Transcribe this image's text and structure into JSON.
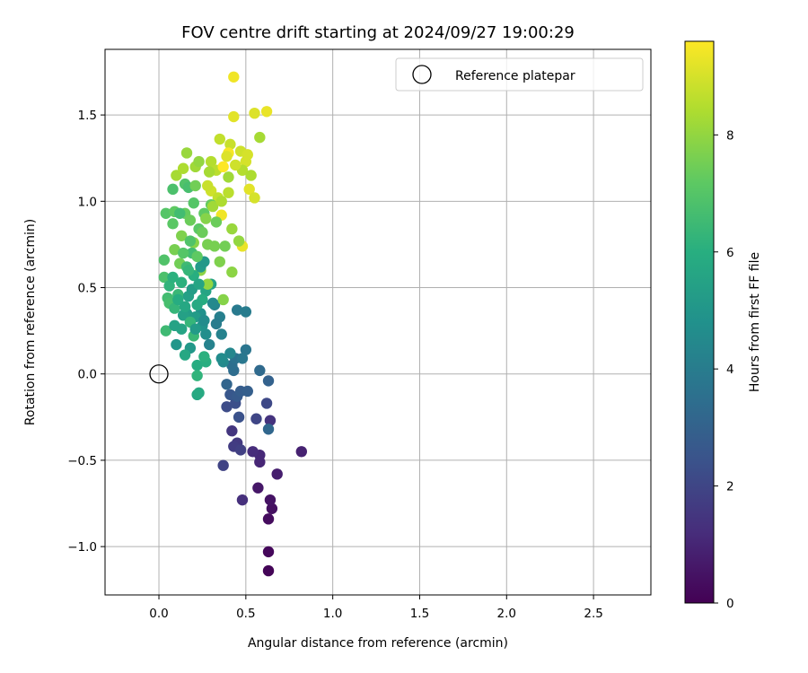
{
  "chart_data": {
    "type": "scatter",
    "title": "FOV centre drift starting at 2024/09/27 19:00:29",
    "xlabel": "Angular distance from reference (arcmin)",
    "ylabel": "Rotation from reference (arcmin)",
    "xlim": [
      -0.31,
      2.83
    ],
    "ylim": [
      -1.28,
      1.88
    ],
    "xticks": [
      0.0,
      0.5,
      1.0,
      1.5,
      2.0,
      2.5
    ],
    "xtick_labels": [
      "0.0",
      "0.5",
      "1.0",
      "1.5",
      "2.0",
      "2.5"
    ],
    "yticks": [
      -1.0,
      -0.5,
      0.0,
      0.5,
      1.0,
      1.5
    ],
    "ytick_labels": [
      "−1.0",
      "−0.5",
      "0.0",
      "0.5",
      "1.0",
      "1.5"
    ],
    "grid": true,
    "legend": {
      "placement": "top-right",
      "label": "Reference platepar"
    },
    "reference_point": {
      "x": 0.0,
      "y": 0.0
    },
    "colorbar": {
      "label": "Hours from first FF file",
      "range": [
        0,
        9.6
      ],
      "ticks": [
        0,
        2,
        4,
        6,
        8
      ],
      "tick_labels": [
        "0",
        "2",
        "4",
        "6",
        "8"
      ],
      "colormap": "viridis"
    },
    "points": [
      {
        "x": 0.63,
        "y": -1.14,
        "h": 0.1
      },
      {
        "x": 0.63,
        "y": -1.03,
        "h": 0.2
      },
      {
        "x": 0.63,
        "y": -0.84,
        "h": 0.3
      },
      {
        "x": 0.65,
        "y": -0.78,
        "h": 0.4
      },
      {
        "x": 0.64,
        "y": -0.73,
        "h": 0.5
      },
      {
        "x": 0.57,
        "y": -0.66,
        "h": 0.6
      },
      {
        "x": 0.68,
        "y": -0.58,
        "h": 0.8
      },
      {
        "x": 0.82,
        "y": -0.45,
        "h": 0.9
      },
      {
        "x": 0.58,
        "y": -0.51,
        "h": 1.0
      },
      {
        "x": 0.58,
        "y": -0.47,
        "h": 1.1
      },
      {
        "x": 0.54,
        "y": -0.45,
        "h": 1.2
      },
      {
        "x": 0.48,
        "y": -0.73,
        "h": 1.3
      },
      {
        "x": 0.64,
        "y": -0.27,
        "h": 1.4
      },
      {
        "x": 0.42,
        "y": -0.33,
        "h": 1.5
      },
      {
        "x": 0.45,
        "y": -0.4,
        "h": 1.6
      },
      {
        "x": 0.43,
        "y": -0.42,
        "h": 1.7
      },
      {
        "x": 0.47,
        "y": -0.44,
        "h": 1.8
      },
      {
        "x": 0.37,
        "y": -0.53,
        "h": 1.9
      },
      {
        "x": 0.56,
        "y": -0.26,
        "h": 2.0
      },
      {
        "x": 0.62,
        "y": -0.17,
        "h": 2.1
      },
      {
        "x": 0.39,
        "y": -0.19,
        "h": 2.2
      },
      {
        "x": 0.44,
        "y": -0.17,
        "h": 2.3
      },
      {
        "x": 0.46,
        "y": -0.25,
        "h": 2.4
      },
      {
        "x": 0.41,
        "y": -0.12,
        "h": 2.6
      },
      {
        "x": 0.45,
        "y": -0.13,
        "h": 2.7
      },
      {
        "x": 0.47,
        "y": -0.1,
        "h": 2.8
      },
      {
        "x": 0.51,
        "y": -0.1,
        "h": 2.9
      },
      {
        "x": 0.63,
        "y": -0.04,
        "h": 3.0
      },
      {
        "x": 0.39,
        "y": -0.06,
        "h": 3.1
      },
      {
        "x": 0.63,
        "y": -0.32,
        "h": 3.2
      },
      {
        "x": 0.58,
        "y": 0.02,
        "h": 3.3
      },
      {
        "x": 0.43,
        "y": 0.02,
        "h": 3.4
      },
      {
        "x": 0.42,
        "y": 0.05,
        "h": 3.5
      },
      {
        "x": 0.44,
        "y": 0.09,
        "h": 3.6
      },
      {
        "x": 0.5,
        "y": 0.14,
        "h": 3.7
      },
      {
        "x": 0.48,
        "y": 0.09,
        "h": 3.8
      },
      {
        "x": 0.45,
        "y": 0.37,
        "h": 3.9
      },
      {
        "x": 0.5,
        "y": 0.36,
        "h": 4.0
      },
      {
        "x": 0.35,
        "y": 0.33,
        "h": 4.1
      },
      {
        "x": 0.36,
        "y": 0.23,
        "h": 4.2
      },
      {
        "x": 0.32,
        "y": 0.4,
        "h": 4.3
      },
      {
        "x": 0.41,
        "y": 0.12,
        "h": 4.4
      },
      {
        "x": 0.37,
        "y": 0.07,
        "h": 4.5
      },
      {
        "x": 0.36,
        "y": 0.09,
        "h": 4.6
      },
      {
        "x": 0.27,
        "y": 0.23,
        "h": 4.7
      },
      {
        "x": 0.24,
        "y": 0.35,
        "h": 4.8
      },
      {
        "x": 0.25,
        "y": 0.28,
        "h": 4.9
      },
      {
        "x": 0.1,
        "y": 0.17,
        "h": 5.0
      },
      {
        "x": 0.18,
        "y": 0.15,
        "h": 5.1
      },
      {
        "x": 0.21,
        "y": 0.33,
        "h": 5.2
      },
      {
        "x": 0.16,
        "y": 0.35,
        "h": 5.3
      },
      {
        "x": 0.14,
        "y": 0.34,
        "h": 5.4
      },
      {
        "x": 0.3,
        "y": 0.52,
        "h": 5.5
      },
      {
        "x": 0.27,
        "y": 0.48,
        "h": 5.6
      },
      {
        "x": 0.22,
        "y": -0.12,
        "h": 5.7
      },
      {
        "x": 0.23,
        "y": -0.11,
        "h": 5.8
      },
      {
        "x": 0.22,
        "y": 0.05,
        "h": 5.9
      },
      {
        "x": 0.27,
        "y": 0.07,
        "h": 6.0
      },
      {
        "x": 0.26,
        "y": 0.1,
        "h": 6.1
      },
      {
        "x": 0.22,
        "y": -0.01,
        "h": 6.2
      },
      {
        "x": 0.18,
        "y": 0.3,
        "h": 6.3
      },
      {
        "x": 0.2,
        "y": 0.22,
        "h": 6.4
      },
      {
        "x": 0.04,
        "y": 0.25,
        "h": 6.5
      },
      {
        "x": 0.05,
        "y": 0.44,
        "h": 6.6
      },
      {
        "x": 0.06,
        "y": 0.41,
        "h": 6.7
      },
      {
        "x": 0.03,
        "y": 0.56,
        "h": 6.8
      },
      {
        "x": 0.03,
        "y": 0.66,
        "h": 6.9
      },
      {
        "x": 0.04,
        "y": 0.93,
        "h": 7.0
      },
      {
        "x": 0.08,
        "y": 0.87,
        "h": 7.1
      },
      {
        "x": 0.09,
        "y": 0.94,
        "h": 7.2
      },
      {
        "x": 0.15,
        "y": 0.93,
        "h": 7.3
      },
      {
        "x": 0.18,
        "y": 0.89,
        "h": 7.4
      },
      {
        "x": 0.12,
        "y": 0.64,
        "h": 7.5
      },
      {
        "x": 0.09,
        "y": 0.72,
        "h": 7.6
      },
      {
        "x": 0.13,
        "y": 0.8,
        "h": 7.7
      },
      {
        "x": 0.2,
        "y": 0.76,
        "h": 7.8
      },
      {
        "x": 0.24,
        "y": 0.6,
        "h": 7.9
      },
      {
        "x": 0.28,
        "y": 0.52,
        "h": 8.0
      },
      {
        "x": 0.16,
        "y": 1.28,
        "h": 8.1
      },
      {
        "x": 0.21,
        "y": 1.2,
        "h": 8.2
      },
      {
        "x": 0.1,
        "y": 1.15,
        "h": 8.3
      },
      {
        "x": 0.14,
        "y": 1.19,
        "h": 8.4
      },
      {
        "x": 0.3,
        "y": 1.23,
        "h": 8.5
      },
      {
        "x": 0.33,
        "y": 1.18,
        "h": 8.6
      },
      {
        "x": 0.35,
        "y": 1.36,
        "h": 8.7
      },
      {
        "x": 0.41,
        "y": 1.33,
        "h": 8.8
      },
      {
        "x": 0.47,
        "y": 1.29,
        "h": 8.9
      },
      {
        "x": 0.5,
        "y": 1.23,
        "h": 9.0
      },
      {
        "x": 0.55,
        "y": 1.51,
        "h": 9.1
      },
      {
        "x": 0.43,
        "y": 1.49,
        "h": 9.2
      },
      {
        "x": 0.62,
        "y": 1.52,
        "h": 9.3
      },
      {
        "x": 0.43,
        "y": 1.72,
        "h": 9.4
      },
      {
        "x": 0.4,
        "y": 1.28,
        "h": 9.5
      },
      {
        "x": 0.36,
        "y": 0.92,
        "h": 9.4
      },
      {
        "x": 0.48,
        "y": 0.74,
        "h": 9.3
      },
      {
        "x": 0.52,
        "y": 1.07,
        "h": 9.2
      },
      {
        "x": 0.55,
        "y": 1.02,
        "h": 9.0
      },
      {
        "x": 0.3,
        "y": 1.06,
        "h": 8.9
      },
      {
        "x": 0.28,
        "y": 1.09,
        "h": 8.8
      },
      {
        "x": 0.34,
        "y": 1.02,
        "h": 8.7
      },
      {
        "x": 0.4,
        "y": 1.05,
        "h": 8.6
      },
      {
        "x": 0.48,
        "y": 1.18,
        "h": 8.5
      },
      {
        "x": 0.53,
        "y": 1.15,
        "h": 8.4
      },
      {
        "x": 0.58,
        "y": 1.37,
        "h": 8.3
      },
      {
        "x": 0.4,
        "y": 1.14,
        "h": 8.2
      },
      {
        "x": 0.42,
        "y": 0.84,
        "h": 8.1
      },
      {
        "x": 0.46,
        "y": 0.77,
        "h": 8.0
      },
      {
        "x": 0.42,
        "y": 0.59,
        "h": 7.9
      },
      {
        "x": 0.37,
        "y": 0.43,
        "h": 7.8
      },
      {
        "x": 0.35,
        "y": 0.65,
        "h": 7.7
      },
      {
        "x": 0.32,
        "y": 0.74,
        "h": 7.6
      },
      {
        "x": 0.38,
        "y": 0.74,
        "h": 7.5
      },
      {
        "x": 0.33,
        "y": 0.88,
        "h": 7.4
      },
      {
        "x": 0.3,
        "y": 0.98,
        "h": 7.3
      },
      {
        "x": 0.26,
        "y": 0.93,
        "h": 7.2
      },
      {
        "x": 0.23,
        "y": 0.84,
        "h": 7.1
      },
      {
        "x": 0.2,
        "y": 0.99,
        "h": 7.0
      },
      {
        "x": 0.15,
        "y": 1.1,
        "h": 6.9
      },
      {
        "x": 0.08,
        "y": 1.07,
        "h": 6.8
      },
      {
        "x": 0.17,
        "y": 1.08,
        "h": 6.7
      },
      {
        "x": 0.19,
        "y": 0.7,
        "h": 6.6
      },
      {
        "x": 0.16,
        "y": 0.62,
        "h": 6.5
      },
      {
        "x": 0.11,
        "y": 0.46,
        "h": 6.4
      },
      {
        "x": 0.09,
        "y": 0.38,
        "h": 6.3
      },
      {
        "x": 0.06,
        "y": 0.51,
        "h": 6.2
      },
      {
        "x": 0.13,
        "y": 0.53,
        "h": 6.1
      },
      {
        "x": 0.2,
        "y": 0.57,
        "h": 6.0
      },
      {
        "x": 0.25,
        "y": 0.43,
        "h": 5.9
      },
      {
        "x": 0.22,
        "y": 0.4,
        "h": 5.8
      },
      {
        "x": 0.15,
        "y": 0.11,
        "h": 5.7
      },
      {
        "x": 0.13,
        "y": 0.26,
        "h": 5.6
      },
      {
        "x": 0.09,
        "y": 0.28,
        "h": 5.5
      },
      {
        "x": 0.17,
        "y": 0.45,
        "h": 5.4
      },
      {
        "x": 0.19,
        "y": 0.49,
        "h": 5.3
      },
      {
        "x": 0.24,
        "y": 0.62,
        "h": 5.2
      },
      {
        "x": 0.26,
        "y": 0.65,
        "h": 5.1
      },
      {
        "x": 0.28,
        "y": 0.75,
        "h": 7.6
      },
      {
        "x": 0.22,
        "y": 0.68,
        "h": 7.2
      },
      {
        "x": 0.14,
        "y": 0.7,
        "h": 7.0
      },
      {
        "x": 0.18,
        "y": 0.77,
        "h": 6.9
      },
      {
        "x": 0.25,
        "y": 0.82,
        "h": 7.4
      },
      {
        "x": 0.27,
        "y": 0.9,
        "h": 7.8
      },
      {
        "x": 0.31,
        "y": 0.97,
        "h": 8.2
      },
      {
        "x": 0.36,
        "y": 1.0,
        "h": 8.4
      },
      {
        "x": 0.39,
        "y": 1.26,
        "h": 9.1
      },
      {
        "x": 0.44,
        "y": 1.21,
        "h": 8.9
      },
      {
        "x": 0.37,
        "y": 1.2,
        "h": 9.6
      },
      {
        "x": 0.51,
        "y": 1.27,
        "h": 9.0
      },
      {
        "x": 0.29,
        "y": 1.17,
        "h": 8.3
      },
      {
        "x": 0.23,
        "y": 1.23,
        "h": 8.0
      },
      {
        "x": 0.21,
        "y": 1.09,
        "h": 7.5
      },
      {
        "x": 0.12,
        "y": 0.93,
        "h": 6.6
      },
      {
        "x": 0.17,
        "y": 0.6,
        "h": 6.3
      },
      {
        "x": 0.08,
        "y": 0.56,
        "h": 6.1
      },
      {
        "x": 0.11,
        "y": 0.43,
        "h": 5.9
      },
      {
        "x": 0.15,
        "y": 0.39,
        "h": 5.7
      },
      {
        "x": 0.26,
        "y": 0.31,
        "h": 4.6
      },
      {
        "x": 0.29,
        "y": 0.17,
        "h": 4.2
      },
      {
        "x": 0.33,
        "y": 0.29,
        "h": 4.0
      },
      {
        "x": 0.31,
        "y": 0.41,
        "h": 4.5
      },
      {
        "x": 0.23,
        "y": 0.52,
        "h": 5.6
      },
      {
        "x": 0.21,
        "y": 0.26,
        "h": 5.2
      }
    ]
  }
}
